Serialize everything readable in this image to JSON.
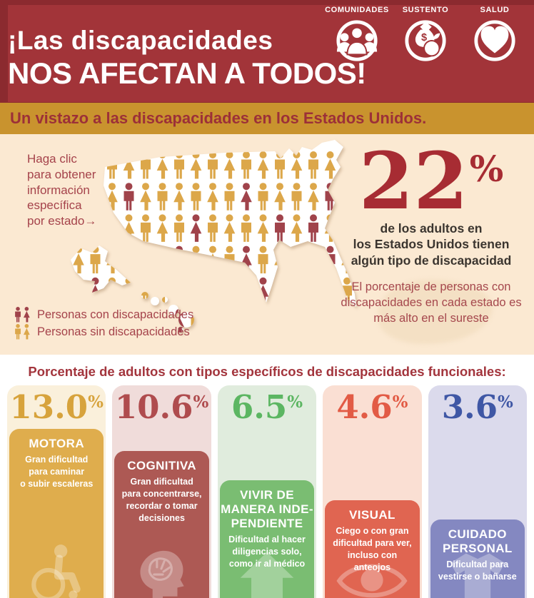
{
  "header": {
    "title_line1": "¡Las discapacidades",
    "title_line2": "NOS AFECTAN A TODOS!",
    "badges": [
      {
        "label": "COMUNIDADES",
        "icon": "people-group-icon"
      },
      {
        "label": "SUSTENTO",
        "icon": "money-bag-apple-icon"
      },
      {
        "label": "SALUD",
        "icon": "heart-icon"
      }
    ],
    "background_color": "#A23439"
  },
  "banner": {
    "text": "Un vistazo a las discapacidades en los Estados Unidos.",
    "background_color": "#C9932E",
    "text_color": "#9C3038"
  },
  "map_section": {
    "cta": "Haga clic\npara obtener\ninformación\nespecífica\npor estado→",
    "stat_value": "22",
    "stat_symbol": "%",
    "stat_caption": "de los adultos en\nlos Estados Unidos tienen\nalgún tipo de discapacidad",
    "stat_note": "El porcentaje de personas con\ndiscapacidades en cada estado es\nmás alto en el sureste",
    "legend": [
      {
        "label": "Personas con discapacidades",
        "color": "#A0434B"
      },
      {
        "label": "Personas sin discapacidades",
        "color": "#DCA74A"
      }
    ],
    "background_color": "#FBE9D2"
  },
  "chart_heading": "Porcentaje de adultos con tipos específicos de discapacidades funcionales:",
  "chart_data": {
    "type": "bar",
    "title": "Porcentaje de adultos con tipos específicos de discapacidades funcionales",
    "categories": [
      "Motora",
      "Cognitiva",
      "Vivir de manera independiente",
      "Visual",
      "Cuidado personal"
    ],
    "values": [
      13.0,
      10.6,
      6.5,
      4.6,
      3.6
    ],
    "unit": "%",
    "overall_stat": {
      "value": 22,
      "unit": "%",
      "label": "de los adultos en los Estados Unidos tienen algún tipo de discapacidad"
    }
  },
  "cards": [
    {
      "percent": "13.0",
      "sign": "%",
      "name": "MOTORA",
      "desc": "Gran dificultad\npara caminar\no subir escaleras",
      "icon": "wheelchair-icon",
      "outer_color": "#FAF0DB",
      "inner_color": "#DFAD4D",
      "percent_color": "#D7A33C"
    },
    {
      "percent": "10.6",
      "sign": "%",
      "name": "COGNITIVA",
      "desc": "Gran dificultad\npara concentrarse,\nrecordar o tomar\ndecisiones",
      "icon": "brain-icon",
      "outer_color": "#F0DCDA",
      "inner_color": "#AD5954",
      "percent_color": "#AF4C4E"
    },
    {
      "percent": "6.5",
      "sign": "%",
      "name": "VIVIR DE\nMANERA INDE-\nPENDIENTE",
      "desc": "Dificultad al hacer\ndiligencias solo,\ncomo ir al médico",
      "icon": "house-icon",
      "outer_color": "#E0ECDD",
      "inner_color": "#7ABD72",
      "percent_color": "#5CB662"
    },
    {
      "percent": "4.6",
      "sign": "%",
      "name": "VISUAL",
      "desc": "Ciego o con gran\ndificultad para ver,\nincluso con anteojos",
      "icon": "eye-icon",
      "outer_color": "#FADFD3",
      "inner_color": "#E06551",
      "percent_color": "#E25B45"
    },
    {
      "percent": "3.6",
      "sign": "%",
      "name": "CUIDADO\nPERSONAL",
      "desc": "Dificultad para\nvestirse o bañarse",
      "icon": "tshirt-icon",
      "outer_color": "#DBDAEC",
      "inner_color": "#8488C1",
      "percent_color": "#3F57A5"
    }
  ]
}
